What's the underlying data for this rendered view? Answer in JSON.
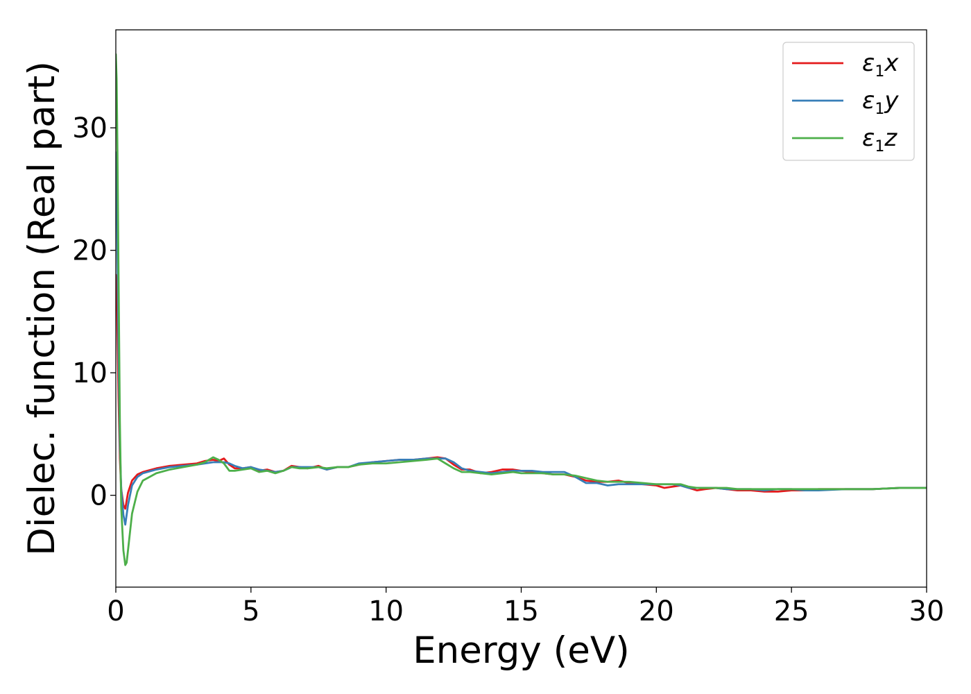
{
  "chart_data": {
    "type": "line",
    "title": "",
    "xlabel": "Energy (eV)",
    "ylabel": "Dielec. function (Real part)",
    "xlim": [
      0,
      30
    ],
    "ylim": [
      -7.5,
      38
    ],
    "xticks": [
      0,
      5,
      10,
      15,
      20,
      25,
      30
    ],
    "xtick_labels": [
      "0",
      "5",
      "10",
      "15",
      "20",
      "25",
      "30"
    ],
    "yticks": [
      0,
      10,
      20,
      30
    ],
    "ytick_labels": [
      "0",
      "10",
      "20",
      "30"
    ],
    "grid": false,
    "legend_position": "top-right",
    "series": [
      {
        "name": "ε1x",
        "legend_main": "ε",
        "legend_sub": "1",
        "legend_var": "x",
        "color": "#e41a1c",
        "x": [
          0,
          0.05,
          0.1,
          0.15,
          0.2,
          0.28,
          0.35,
          0.45,
          0.6,
          0.8,
          1.0,
          1.5,
          2.0,
          2.5,
          3.0,
          3.3,
          3.6,
          3.8,
          4.0,
          4.2,
          4.4,
          4.7,
          5.0,
          5.3,
          5.6,
          5.9,
          6.2,
          6.5,
          6.8,
          7.1,
          7.5,
          7.8,
          8.2,
          8.6,
          9.0,
          9.5,
          10.0,
          10.5,
          11.0,
          11.5,
          11.9,
          12.2,
          12.5,
          12.8,
          13.1,
          13.5,
          13.9,
          14.3,
          14.7,
          15.0,
          15.4,
          15.8,
          16.2,
          16.6,
          17.0,
          17.4,
          17.8,
          18.2,
          18.6,
          19.0,
          19.5,
          20.0,
          20.3,
          20.6,
          20.9,
          21.2,
          21.5,
          21.8,
          22.2,
          22.6,
          23.0,
          23.5,
          24.0,
          24.5,
          25.0,
          25.5,
          26.0,
          27.0,
          28.0,
          29.0,
          30.0
        ],
        "y": [
          18,
          15,
          8,
          3,
          0.5,
          -0.8,
          -1.1,
          0.2,
          1.2,
          1.7,
          1.9,
          2.2,
          2.4,
          2.5,
          2.6,
          2.8,
          2.9,
          2.8,
          3.0,
          2.5,
          2.2,
          2.2,
          2.3,
          2.0,
          2.1,
          1.9,
          2.0,
          2.4,
          2.3,
          2.2,
          2.4,
          2.1,
          2.3,
          2.3,
          2.5,
          2.7,
          2.8,
          2.9,
          2.9,
          3.0,
          3.1,
          3.0,
          2.5,
          2.1,
          2.1,
          1.8,
          1.9,
          2.1,
          2.1,
          2.0,
          1.9,
          1.8,
          1.7,
          1.7,
          1.5,
          1.2,
          1.1,
          1.1,
          1.2,
          1.0,
          0.9,
          0.8,
          0.6,
          0.7,
          0.8,
          0.6,
          0.4,
          0.5,
          0.6,
          0.5,
          0.4,
          0.4,
          0.3,
          0.3,
          0.4,
          0.4,
          0.5,
          0.5,
          0.5,
          0.6,
          0.6
        ]
      },
      {
        "name": "ε1y",
        "legend_main": "ε",
        "legend_sub": "1",
        "legend_var": "y",
        "color": "#377eb8",
        "x": [
          0,
          0.05,
          0.1,
          0.15,
          0.2,
          0.28,
          0.35,
          0.45,
          0.6,
          0.8,
          1.0,
          1.5,
          2.0,
          2.5,
          3.0,
          3.3,
          3.6,
          3.8,
          4.0,
          4.2,
          4.4,
          4.7,
          5.0,
          5.3,
          5.6,
          5.9,
          6.2,
          6.5,
          6.8,
          7.1,
          7.5,
          7.8,
          8.2,
          8.6,
          9.0,
          9.5,
          10.0,
          10.5,
          11.0,
          11.5,
          11.9,
          12.2,
          12.5,
          12.8,
          13.1,
          13.5,
          13.9,
          14.3,
          14.7,
          15.0,
          15.4,
          15.8,
          16.2,
          16.6,
          17.0,
          17.4,
          17.8,
          18.2,
          18.6,
          19.0,
          19.5,
          20.0,
          20.3,
          20.6,
          20.9,
          21.2,
          21.5,
          21.8,
          22.2,
          22.6,
          23.0,
          23.5,
          24.0,
          24.5,
          25.0,
          25.5,
          26.0,
          27.0,
          28.0,
          29.0,
          30.0
        ],
        "y": [
          28,
          22,
          12,
          4,
          0.5,
          -1.6,
          -2.4,
          -0.8,
          0.8,
          1.5,
          1.8,
          2.1,
          2.3,
          2.4,
          2.5,
          2.6,
          2.7,
          2.7,
          2.7,
          2.6,
          2.4,
          2.2,
          2.3,
          2.1,
          2.0,
          1.9,
          2.0,
          2.3,
          2.3,
          2.3,
          2.3,
          2.1,
          2.3,
          2.3,
          2.6,
          2.7,
          2.8,
          2.9,
          2.9,
          3.0,
          3.0,
          3.0,
          2.7,
          2.2,
          2.0,
          1.9,
          1.8,
          1.9,
          2.0,
          2.0,
          2.0,
          1.9,
          1.9,
          1.9,
          1.5,
          1.0,
          1.0,
          0.8,
          0.9,
          0.9,
          0.9,
          0.9,
          0.9,
          0.9,
          0.8,
          0.6,
          0.6,
          0.6,
          0.6,
          0.5,
          0.5,
          0.5,
          0.4,
          0.5,
          0.5,
          0.4,
          0.4,
          0.5,
          0.5,
          0.6,
          0.6
        ]
      },
      {
        "name": "ε1z",
        "legend_main": "ε",
        "legend_sub": "1",
        "legend_var": "z",
        "color": "#4daf4a",
        "x": [
          0,
          0.03,
          0.06,
          0.1,
          0.15,
          0.2,
          0.28,
          0.35,
          0.4,
          0.5,
          0.6,
          0.8,
          1.0,
          1.5,
          2.0,
          2.5,
          3.0,
          3.3,
          3.6,
          3.8,
          4.0,
          4.2,
          4.4,
          4.7,
          5.0,
          5.3,
          5.6,
          5.9,
          6.2,
          6.5,
          6.8,
          7.1,
          7.5,
          7.8,
          8.2,
          8.6,
          9.0,
          9.5,
          10.0,
          10.5,
          11.0,
          11.5,
          11.9,
          12.2,
          12.5,
          12.8,
          13.1,
          13.5,
          13.9,
          14.3,
          14.7,
          15.0,
          15.4,
          15.8,
          16.2,
          16.6,
          17.0,
          17.4,
          17.8,
          18.2,
          18.6,
          19.0,
          19.5,
          20.0,
          20.3,
          20.6,
          20.9,
          21.2,
          21.5,
          21.8,
          22.2,
          22.6,
          23.0,
          23.5,
          24.0,
          24.5,
          25.0,
          25.5,
          26.0,
          27.0,
          28.0,
          29.0,
          30.0
        ],
        "y": [
          36,
          34,
          28,
          18,
          6,
          -1,
          -4.5,
          -5.7,
          -5.5,
          -3.5,
          -1.5,
          0.3,
          1.2,
          1.8,
          2.1,
          2.3,
          2.5,
          2.7,
          3.1,
          2.9,
          2.6,
          2.0,
          2.0,
          2.1,
          2.2,
          1.9,
          2.0,
          1.8,
          2.0,
          2.3,
          2.2,
          2.2,
          2.3,
          2.2,
          2.3,
          2.3,
          2.5,
          2.6,
          2.6,
          2.7,
          2.8,
          2.9,
          3.0,
          2.6,
          2.2,
          1.9,
          1.9,
          1.8,
          1.7,
          1.8,
          1.9,
          1.8,
          1.8,
          1.8,
          1.7,
          1.7,
          1.6,
          1.4,
          1.2,
          1.1,
          1.1,
          1.1,
          1.0,
          0.9,
          0.9,
          0.9,
          0.9,
          0.7,
          0.6,
          0.6,
          0.6,
          0.6,
          0.5,
          0.5,
          0.5,
          0.5,
          0.5,
          0.5,
          0.5,
          0.5,
          0.5,
          0.6,
          0.6
        ]
      }
    ]
  }
}
